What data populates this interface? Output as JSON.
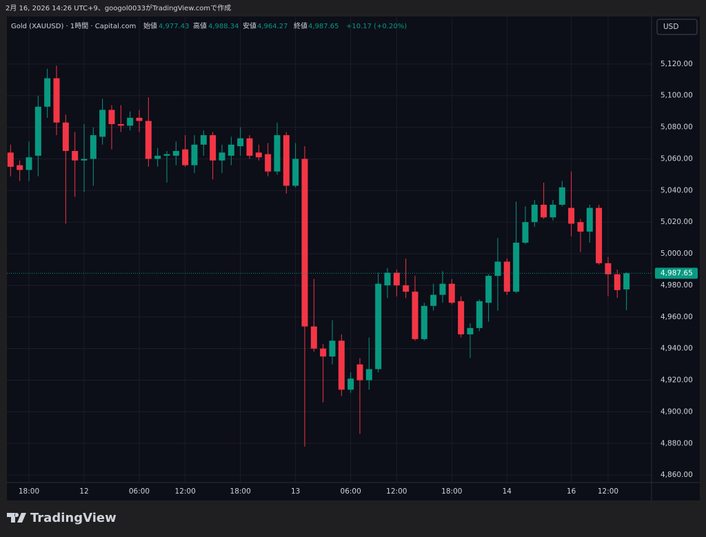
{
  "watermark": "2月 16, 2026 14:26 UTC+9、googol0033がTradingView.comで作成",
  "footer": {
    "logo_text": "TradingView"
  },
  "currency_button": "USD",
  "chart_data": {
    "type": "candlestick",
    "title": "Gold (XAUUSD) · 1時間 · Capital.com",
    "ohlc_legend": {
      "open_label": "始値",
      "open": "4,977.43",
      "high_label": "高値",
      "high": "4,988.34",
      "low_label": "安値",
      "low": "4,964.27",
      "close_label": "終値",
      "close": "4,987.65",
      "change": "+10.17 (+0.20%)"
    },
    "categories": [
      null,
      null,
      "18:00",
      null,
      null,
      null,
      null,
      null,
      "12",
      null,
      null,
      null,
      null,
      null,
      "06:00",
      null,
      null,
      null,
      null,
      "12:00",
      null,
      null,
      null,
      null,
      null,
      "18:00",
      null,
      null,
      null,
      null,
      null,
      "13",
      null,
      null,
      null,
      null,
      null,
      "06:00",
      null,
      null,
      null,
      null,
      "12:00",
      null,
      null,
      null,
      null,
      null,
      "18:00",
      null,
      null,
      null,
      null,
      null,
      "14",
      null,
      null,
      null,
      null,
      null,
      null,
      "16",
      null,
      null,
      null,
      "12:00",
      null,
      null
    ],
    "open": [
      5064,
      5056,
      5053,
      5062,
      5093,
      5111,
      5083,
      5065,
      5059,
      5060,
      5074,
      5091,
      5082,
      5081,
      5086,
      5084,
      5060,
      5062,
      5062,
      5066,
      5056,
      5069,
      5075,
      5059,
      5062,
      5068,
      5073,
      5064,
      5063,
      5052,
      5075,
      5043,
      5060,
      4954,
      4940,
      4935,
      4945,
      4914,
      4930,
      4920,
      4927,
      4980,
      4988,
      4980,
      4976,
      4946,
      4967,
      4974,
      4981,
      4970,
      4949,
      4953,
      4969,
      4986,
      4995,
      4976,
      5007,
      5020,
      5031,
      5023,
      5031,
      5029,
      5020,
      5014,
      5029,
      4994,
      4987,
      4977.43
    ],
    "high": [
      5069,
      5059,
      5071,
      5100,
      5117,
      5119,
      5088,
      5077,
      5082,
      5080,
      5098,
      5094,
      5094,
      5090,
      5091,
      5099,
      5067,
      5065,
      5071,
      5075,
      5075,
      5078,
      5077,
      5069,
      5074,
      5080,
      5075,
      5069,
      5070,
      5083,
      5077,
      5070,
      5068,
      4984,
      4943,
      4958,
      4949,
      4925,
      4934,
      4947,
      4988,
      4991,
      4990,
      4997,
      4986,
      4969,
      4981,
      4989,
      4984,
      4973,
      4956,
      4971,
      4987,
      5010,
      4997,
      5033,
      5030,
      5034,
      5045,
      5034,
      5046,
      5052,
      5022,
      5031,
      5031,
      4998,
      4990,
      4988.34
    ],
    "low": [
      5049,
      5046,
      5046,
      5049,
      5086,
      5075,
      5019,
      5036,
      5039,
      5043,
      5069,
      5066,
      5077,
      5078,
      5077,
      5055,
      5055,
      5045,
      5056,
      5055,
      5051,
      5062,
      5047,
      5051,
      5056,
      5062,
      5060,
      5059,
      5049,
      5050,
      5038,
      5042,
      4878,
      4938,
      4906,
      4930,
      4910,
      4912,
      4886,
      4914,
      4925,
      4972,
      4973,
      4972,
      4945,
      4945,
      4964,
      4969,
      4968,
      4947,
      4934,
      4951,
      4957,
      4964,
      4974,
      4975,
      5006,
      5017,
      5022,
      5021,
      5030,
      5011,
      5001,
      5007,
      4993,
      4973,
      4972,
      4964.27
    ],
    "close": [
      5055,
      5053,
      5061,
      5093,
      5111,
      5083,
      5065,
      5059,
      5060,
      5075,
      5091,
      5082,
      5081,
      5086,
      5084,
      5060,
      5062,
      5063,
      5065,
      5056,
      5069,
      5075,
      5059,
      5064,
      5069,
      5073,
      5062,
      5061,
      5052,
      5075,
      5043,
      5060,
      4954,
      4940,
      4935,
      4945,
      4914,
      4921,
      4920,
      4927,
      4981,
      4988,
      4980,
      4976,
      4946,
      4967,
      4974,
      4981,
      4969,
      4949,
      4953,
      4970,
      4986,
      4995,
      4976,
      5007,
      5020,
      5031,
      5023,
      5031,
      5042,
      5019,
      5014,
      5029,
      4994,
      4987,
      4977,
      4987.65
    ],
    "up_color": "#089981",
    "down_color": "#f23645",
    "last_price": {
      "value": 4987.65,
      "label": "4,987.65"
    },
    "ylim": [
      4855.7,
      5149.6
    ],
    "yticks": [
      {
        "value": 4860,
        "label": "4,860.00"
      },
      {
        "value": 4880,
        "label": "4,880.00"
      },
      {
        "value": 4900,
        "label": "4,900.00"
      },
      {
        "value": 4920,
        "label": "4,920.00"
      },
      {
        "value": 4940,
        "label": "4,940.00"
      },
      {
        "value": 4960,
        "label": "4,960.00"
      },
      {
        "value": 4980,
        "label": "4,980.00"
      },
      {
        "value": 5000,
        "label": "5,000.00"
      },
      {
        "value": 5020,
        "label": "5,020.00"
      },
      {
        "value": 5040,
        "label": "5,040.00"
      },
      {
        "value": 5060,
        "label": "5,060.00"
      },
      {
        "value": 5080,
        "label": "5,080.00"
      },
      {
        "value": 5100,
        "label": "5,100.00"
      },
      {
        "value": 5120,
        "label": "5,120.00"
      }
    ],
    "grid": true
  }
}
